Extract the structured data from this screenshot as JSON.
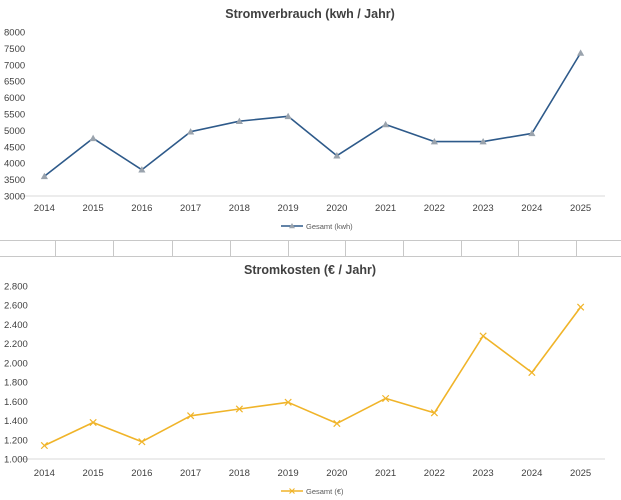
{
  "chart_data": [
    {
      "type": "line",
      "title": "Stromverbrauch (kwh / Jahr)",
      "xlabel": "",
      "ylabel": "",
      "categories": [
        "2014",
        "2015",
        "2016",
        "2017",
        "2018",
        "2019",
        "2020",
        "2021",
        "2022",
        "2023",
        "2024",
        "2025"
      ],
      "series": [
        {
          "name": "Gesamt (kwh)",
          "values": [
            3600,
            4760,
            3800,
            4960,
            5280,
            5430,
            4230,
            5180,
            4660,
            4660,
            4910,
            7360
          ],
          "color": "#2e5a8a",
          "marker": "triangle",
          "marker_color": "#9aa3ad"
        }
      ],
      "ylim": [
        3000,
        8000
      ],
      "yticks": [
        "3000",
        "3500",
        "4000",
        "4500",
        "5000",
        "5500",
        "6000",
        "6500",
        "7000",
        "7500",
        "8000"
      ],
      "legend": "bottom",
      "grid": false
    },
    {
      "type": "line",
      "title": "Stromkosten (€ / Jahr)",
      "xlabel": "",
      "ylabel": "",
      "categories": [
        "2014",
        "2015",
        "2016",
        "2017",
        "2018",
        "2019",
        "2020",
        "2021",
        "2022",
        "2023",
        "2024",
        "2025"
      ],
      "series": [
        {
          "name": "Gesamt (€)",
          "values": [
            1140,
            1380,
            1180,
            1450,
            1520,
            1590,
            1370,
            1630,
            1480,
            2280,
            1900,
            2580
          ],
          "color": "#f0b429",
          "marker": "x",
          "marker_color": "#f0b429"
        }
      ],
      "ylim": [
        1000,
        2800
      ],
      "yticks": [
        "1.000",
        "1.200",
        "1.400",
        "1.600",
        "1.800",
        "2.000",
        "2.200",
        "2.400",
        "2.600",
        "2.800"
      ],
      "legend": "bottom",
      "grid": false
    }
  ]
}
